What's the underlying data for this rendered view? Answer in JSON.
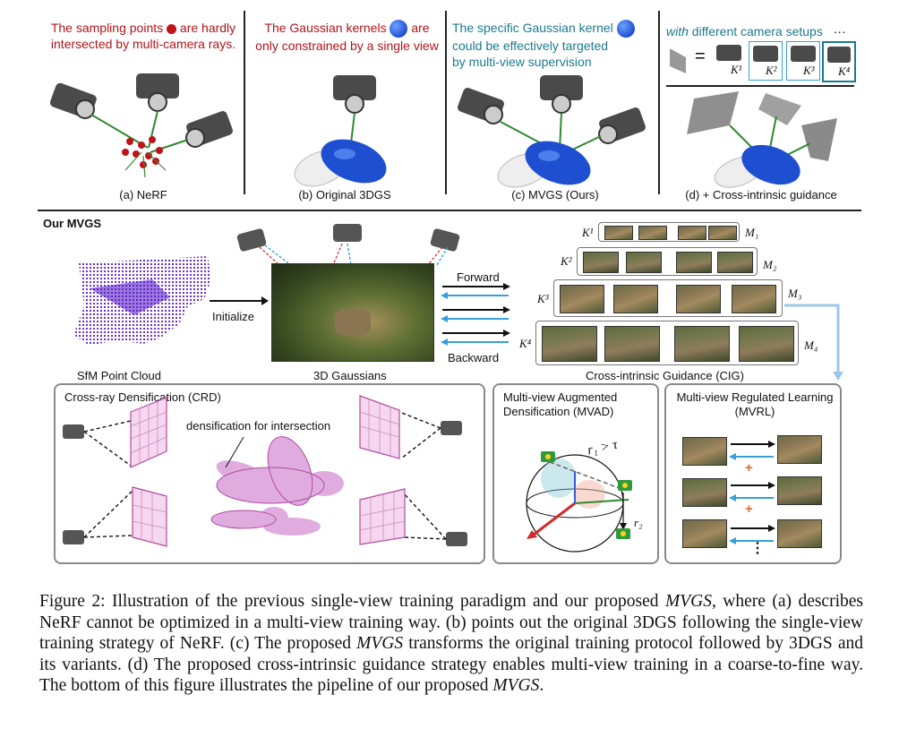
{
  "top_panels": {
    "a": {
      "note_line1": "The sampling points",
      "note_line1_tail": "are hardly",
      "note_line2": "intersected by multi-camera rays.",
      "caption": "(a) NeRF"
    },
    "b": {
      "note_line1": "The Gaussian kernels",
      "note_line1_tail": "are",
      "note_line2": "only constrained by a single view",
      "caption": "(b) Original 3DGS"
    },
    "c": {
      "note_line1": "The specific Gaussian kernel",
      "note_line2": "could be effectively targeted",
      "note_line3": "by multi-view supervision",
      "caption": "(c) MVGS (Ours)"
    },
    "d": {
      "note_with": "with",
      "note_rest": "different camera setups",
      "ellipsis": "···",
      "equals": "=",
      "k_labels": [
        "K¹",
        "K²",
        "K³",
        "K⁴"
      ],
      "caption": "(d) + Cross-intrinsic guidance"
    }
  },
  "pipeline": {
    "section_title": "Our MVGS",
    "sfm_label": "SfM Point Cloud",
    "initialize_label": "Initialize",
    "gaussians_label": "3D Gaussians",
    "forward_label": "Forward",
    "backward_label": "Backward",
    "cig_label": "Cross-intrinsic Guidance (CIG)",
    "cig_rows": [
      {
        "k": "K¹",
        "m": "M₁"
      },
      {
        "k": "K²",
        "m": "M₂"
      },
      {
        "k": "K³",
        "m": "M₃"
      },
      {
        "k": "K⁴",
        "m": "M₄"
      }
    ]
  },
  "crd": {
    "title": "Cross-ray  Densification (CRD)",
    "note": "densification for intersection"
  },
  "mvad": {
    "title_line1": "Multi-view Augmented",
    "title_line2": "Densification (MVAD)",
    "formula": "r₁ > τ",
    "r2": "r₂"
  },
  "mvrl": {
    "title_line1": "Multi-view Regulated Learning",
    "title_line2": "(MVRL)",
    "plus": "+",
    "vdots": "⋮"
  },
  "figure_caption": {
    "p1": "Figure 2: Illustration of the previous single-view training paradigm and our proposed ",
    "em1": "MVGS",
    "p2": ", where (a) describes NeRF cannot be optimized in a multi-view training way. (b) points out the original 3DGS following the single-view training strategy of NeRF. (c) The proposed ",
    "em2": "MVGS",
    "p3": " transforms the original training protocol followed by 3DGS and its variants. (d) The proposed cross-intrinsic guidance strategy enables multi-view training in a coarse-to-fine way. The bottom of this figure illustrates the pipeline of our proposed ",
    "em3": "MVGS",
    "p4": "."
  },
  "colors": {
    "red_text": "#b0151a",
    "teal_text": "#1b7a8f",
    "blue_arrow": "#3a9fd8",
    "blue_kernel": "#1f4fd1",
    "magenta": "#c86ac8",
    "light_blue_line": "#9cc8ea"
  }
}
